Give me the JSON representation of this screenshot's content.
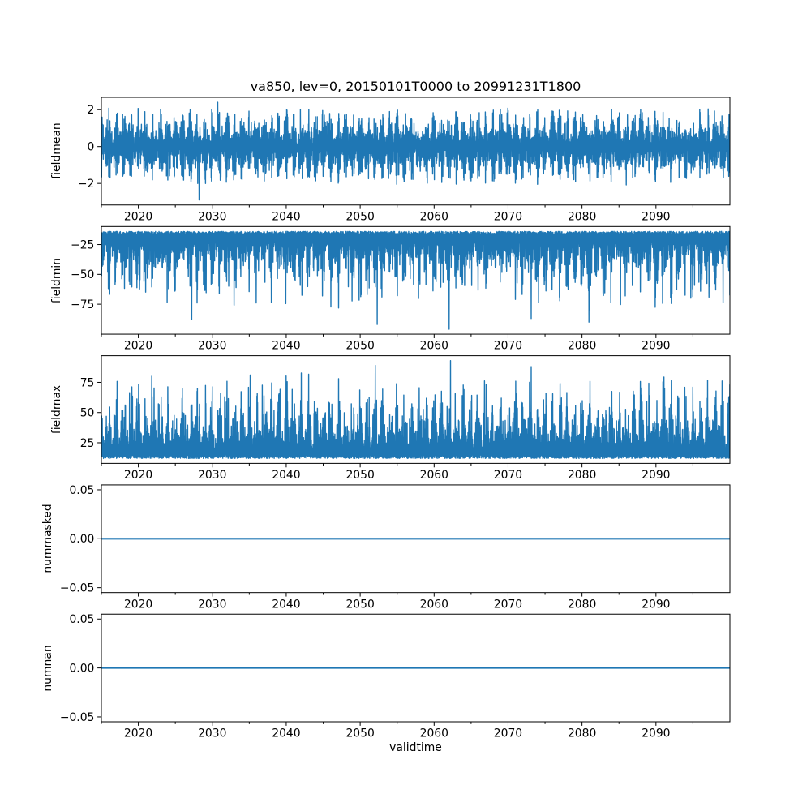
{
  "figure": {
    "title": "va850, lev=0, 20150101T0000 to 20991231T1800",
    "xlabel": "validtime",
    "background_color": "#ffffff",
    "text_color": "#000000",
    "line_color": "#1f77b4"
  },
  "chart_data": [
    {
      "type": "line",
      "ylabel": "fieldmean",
      "x_range": [
        2015,
        2100
      ],
      "ylim": [
        -3.17,
        2.67
      ],
      "ytick_values": [
        2,
        0,
        -2
      ],
      "ytick_labels": [
        "2",
        "0",
        "−2"
      ],
      "xtick_values": [
        2020,
        2030,
        2040,
        2050,
        2060,
        2070,
        2080,
        2090
      ],
      "xtick_labels": [
        "2020",
        "2030",
        "2040",
        "2050",
        "2060",
        "2070",
        "2080",
        "2090"
      ],
      "xtick_minor": [
        2015,
        2025,
        2035,
        2045,
        2055,
        2065,
        2075,
        2085,
        2095
      ],
      "grid": false,
      "legend": null,
      "series": {
        "name": "fieldmean",
        "color": "#1f77b4",
        "kind": "symmetric-noise",
        "center": 0,
        "dense_band": [
          -1.5,
          1.5
        ],
        "extremes": [
          -2.9,
          2.4
        ],
        "seasonal_period_years": 1,
        "notable_points": [
          {
            "x": 2028.2,
            "y": -2.9
          },
          {
            "x": 2030.7,
            "y": 2.4
          }
        ]
      }
    },
    {
      "type": "line",
      "ylabel": "fieldmin",
      "x_range": [
        2015,
        2100
      ],
      "ylim": [
        -100.1,
        -9.9
      ],
      "ytick_values": [
        -25,
        -50,
        -75
      ],
      "ytick_labels": [
        "−25",
        "−50",
        "−75"
      ],
      "xtick_values": [
        2020,
        2030,
        2040,
        2050,
        2060,
        2070,
        2080,
        2090
      ],
      "xtick_labels": [
        "2020",
        "2030",
        "2040",
        "2050",
        "2060",
        "2070",
        "2080",
        "2090"
      ],
      "xtick_minor": [
        2015,
        2025,
        2035,
        2045,
        2055,
        2065,
        2075,
        2085,
        2095
      ],
      "grid": false,
      "legend": null,
      "series": {
        "name": "fieldmin",
        "color": "#1f77b4",
        "kind": "lower-noise",
        "top_edge": [
          -17,
          -14
        ],
        "dense_band": [
          -45,
          -16
        ],
        "extremes": [
          -96,
          -14
        ],
        "seasonal_period_years": 1,
        "notable_points": [
          {
            "x": 2027.2,
            "y": -88
          },
          {
            "x": 2052.3,
            "y": -92
          },
          {
            "x": 2062.0,
            "y": -96
          },
          {
            "x": 2073.1,
            "y": -87
          },
          {
            "x": 2080.9,
            "y": -90
          }
        ]
      }
    },
    {
      "type": "line",
      "ylabel": "fieldmax",
      "x_range": [
        2015,
        2100
      ],
      "ylim": [
        7.95,
        97.05
      ],
      "ytick_values": [
        75,
        50,
        25
      ],
      "ytick_labels": [
        "75",
        "50",
        "25"
      ],
      "xtick_values": [
        2020,
        2030,
        2040,
        2050,
        2060,
        2070,
        2080,
        2090
      ],
      "xtick_labels": [
        "2020",
        "2030",
        "2040",
        "2050",
        "2060",
        "2070",
        "2080",
        "2090"
      ],
      "xtick_minor": [
        2015,
        2025,
        2035,
        2045,
        2055,
        2065,
        2075,
        2085,
        2095
      ],
      "grid": false,
      "legend": null,
      "series": {
        "name": "fieldmax",
        "color": "#1f77b4",
        "kind": "upper-noise",
        "bottom_edge": [
          12,
          15
        ],
        "dense_band": [
          15,
          45
        ],
        "extremes": [
          12,
          93
        ],
        "seasonal_period_years": 1,
        "notable_points": [
          {
            "x": 2021.8,
            "y": 80
          },
          {
            "x": 2035.1,
            "y": 81
          },
          {
            "x": 2052.0,
            "y": 89
          },
          {
            "x": 2062.2,
            "y": 93
          },
          {
            "x": 2073.1,
            "y": 88
          }
        ]
      }
    },
    {
      "type": "line",
      "ylabel": "nummasked",
      "x_range": [
        2015,
        2100
      ],
      "ylim": [
        -0.055,
        0.055
      ],
      "ytick_values": [
        0.05,
        0,
        -0.05
      ],
      "ytick_labels": [
        "0.05",
        "0.00",
        "−0.05"
      ],
      "xtick_values": [
        2020,
        2030,
        2040,
        2050,
        2060,
        2070,
        2080,
        2090
      ],
      "xtick_labels": [
        "2020",
        "2030",
        "2040",
        "2050",
        "2060",
        "2070",
        "2080",
        "2090"
      ],
      "xtick_minor": [
        2015,
        2025,
        2035,
        2045,
        2055,
        2065,
        2075,
        2085,
        2095
      ],
      "grid": false,
      "legend": null,
      "series": {
        "name": "nummasked",
        "color": "#1f77b4",
        "kind": "constant",
        "value": 0
      }
    },
    {
      "type": "line",
      "ylabel": "numnan",
      "x_range": [
        2015,
        2100
      ],
      "ylim": [
        -0.055,
        0.055
      ],
      "ytick_values": [
        0.05,
        0,
        -0.05
      ],
      "ytick_labels": [
        "0.05",
        "0.00",
        "−0.05"
      ],
      "xtick_values": [
        2020,
        2030,
        2040,
        2050,
        2060,
        2070,
        2080,
        2090
      ],
      "xtick_labels": [
        "2020",
        "2030",
        "2040",
        "2050",
        "2060",
        "2070",
        "2080",
        "2090"
      ],
      "xtick_minor": [
        2015,
        2025,
        2035,
        2045,
        2055,
        2065,
        2075,
        2085,
        2095
      ],
      "grid": false,
      "legend": null,
      "series": {
        "name": "numnan",
        "color": "#1f77b4",
        "kind": "constant",
        "value": 0
      }
    }
  ]
}
